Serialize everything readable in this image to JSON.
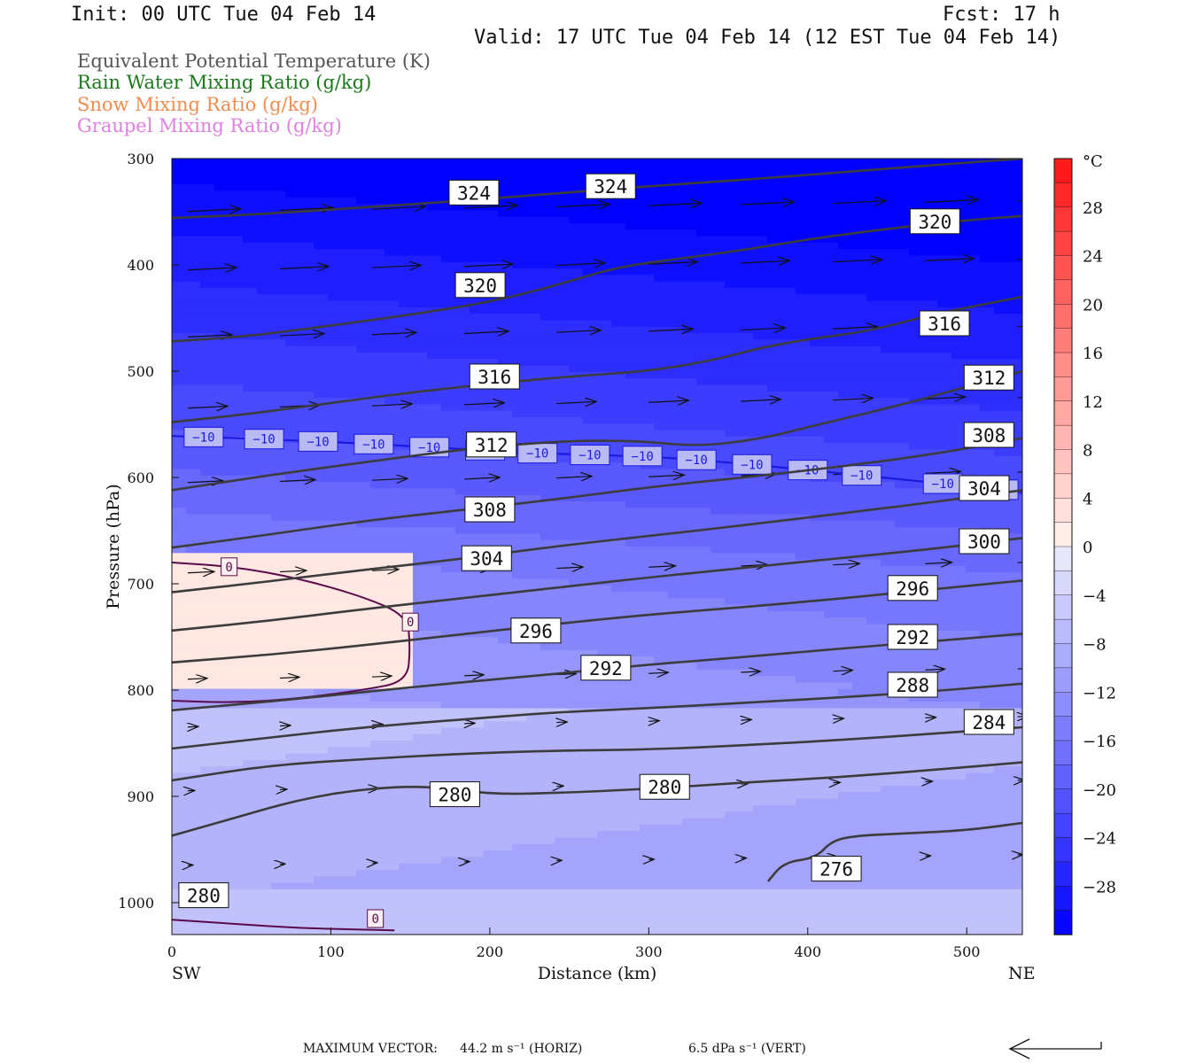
{
  "header": {
    "init": "Init: 00 UTC Tue 04 Feb 14",
    "fcst": "Fcst:   17 h",
    "valid": "Valid: 17 UTC Tue 04 Feb 14 (12 EST Tue 04 Feb 14)"
  },
  "legend": [
    {
      "label": "Equivalent Potential Temperature (K)",
      "color": "#555555"
    },
    {
      "label": "Rain Water Mixing Ratio (g/kg)",
      "color": "#1a7a1a"
    },
    {
      "label": "Snow Mixing Ratio (g/kg)",
      "color": "#f08c50"
    },
    {
      "label": "Graupel Mixing Ratio (g/kg)",
      "color": "#e080e0"
    }
  ],
  "chart_data": {
    "type": "contour",
    "xlabel": "Distance (km)",
    "ylabel": "Pressure (hPa)",
    "xlim": [
      0,
      535
    ],
    "ylim": [
      1030,
      300
    ],
    "x_ticks": [
      0,
      100,
      200,
      300,
      400,
      500
    ],
    "y_ticks": [
      300,
      400,
      500,
      600,
      700,
      800,
      900,
      1000
    ],
    "endpoints": {
      "left": "SW",
      "right": "NE"
    },
    "colorbar": {
      "unit": "°C",
      "labels": [
        28,
        24,
        20,
        16,
        12,
        8,
        4,
        0,
        -4,
        -8,
        -12,
        -16,
        -20,
        -24,
        -28
      ],
      "min": -32,
      "max": 32,
      "step": 2
    },
    "theta_e_contours": [
      {
        "value": 324,
        "x": [
          0,
          60,
          120,
          180,
          240,
          300,
          360,
          420,
          480,
          535
        ],
        "p": [
          356,
          352,
          346,
          340,
          333,
          326,
          320,
          313,
          306,
          300
        ]
      },
      {
        "value": 320,
        "x": [
          0,
          50,
          100,
          150,
          200,
          240,
          280,
          320,
          360,
          400,
          450,
          500,
          535
        ],
        "p": [
          472,
          467,
          457,
          447,
          435,
          420,
          402,
          394,
          386,
          376,
          366,
          358,
          354
        ]
      },
      {
        "value": 316,
        "x": [
          0,
          50,
          100,
          150,
          200,
          250,
          300,
          340,
          370,
          400,
          440,
          480,
          535
        ],
        "p": [
          548,
          540,
          530,
          520,
          512,
          505,
          500,
          490,
          478,
          470,
          462,
          446,
          430
        ]
      },
      {
        "value": 312,
        "x": [
          0,
          60,
          120,
          180,
          240,
          290,
          330,
          370,
          410,
          450,
          490,
          535
        ],
        "p": [
          612,
          598,
          586,
          574,
          566,
          565,
          571,
          564,
          549,
          535,
          519,
          500
        ]
      },
      {
        "value": 308,
        "x": [
          0,
          60,
          120,
          180,
          240,
          300,
          360,
          420,
          480,
          535
        ],
        "p": [
          666,
          654,
          641,
          631,
          621,
          609,
          600,
          590,
          578,
          563
        ]
      },
      {
        "value": 304,
        "x": [
          0,
          60,
          120,
          180,
          240,
          300,
          360,
          420,
          480,
          535
        ],
        "p": [
          708,
          698,
          687,
          677,
          665,
          655,
          645,
          634,
          623,
          612
        ]
      },
      {
        "value": 300,
        "x": [
          0,
          60,
          120,
          180,
          240,
          300,
          360,
          420,
          480,
          535
        ],
        "p": [
          744,
          735,
          724,
          714,
          704,
          694,
          685,
          676,
          667,
          657
        ]
      },
      {
        "value": 296,
        "x": [
          0,
          60,
          120,
          180,
          240,
          300,
          360,
          420,
          480,
          535
        ],
        "p": [
          774,
          767,
          758,
          748,
          738,
          729,
          722,
          714,
          705,
          697
        ]
      },
      {
        "value": 292,
        "x": [
          0,
          60,
          120,
          180,
          240,
          300,
          360,
          420,
          480,
          535
        ],
        "p": [
          819,
          811,
          802,
          793,
          785,
          776,
          769,
          761,
          754,
          747
        ]
      },
      {
        "value": 288,
        "x": [
          0,
          60,
          120,
          180,
          240,
          300,
          360,
          420,
          480,
          535
        ],
        "p": [
          855,
          845,
          835,
          828,
          821,
          817,
          812,
          807,
          801,
          794
        ]
      },
      {
        "value": 284,
        "x": [
          0,
          60,
          120,
          180,
          240,
          300,
          360,
          420,
          480,
          535
        ],
        "p": [
          885,
          871,
          865,
          860,
          857,
          856,
          852,
          847,
          841,
          835
        ]
      },
      {
        "value": 280,
        "x": [
          0,
          40,
          80,
          120,
          160,
          200,
          240,
          300,
          360,
          420,
          480,
          535
        ],
        "p": [
          937,
          920,
          903,
          893,
          890,
          898,
          897,
          893,
          887,
          882,
          875,
          868
        ]
      },
      {
        "value": 276,
        "x": [
          375,
          385,
          405,
          415,
          430,
          460,
          500,
          535
        ],
        "p": [
          980,
          962,
          958,
          942,
          937,
          935,
          932,
          925
        ]
      }
    ],
    "zero_isotherm_label": "0",
    "minus10_isotherm_label": "−10",
    "labels_theta_e": [
      {
        "text": "324",
        "x": 190,
        "p": 332
      },
      {
        "text": "324",
        "x": 276,
        "p": 326
      },
      {
        "text": "320",
        "x": 480,
        "p": 359
      },
      {
        "text": "320",
        "x": 194,
        "p": 419
      },
      {
        "text": "316",
        "x": 486,
        "p": 455
      },
      {
        "text": "316",
        "x": 203,
        "p": 505
      },
      {
        "text": "312",
        "x": 514,
        "p": 506
      },
      {
        "text": "312",
        "x": 201,
        "p": 569
      },
      {
        "text": "308",
        "x": 514,
        "p": 560
      },
      {
        "text": "308",
        "x": 200,
        "p": 630
      },
      {
        "text": "304",
        "x": 511,
        "p": 610
      },
      {
        "text": "304",
        "x": 198,
        "p": 676
      },
      {
        "text": "300",
        "x": 511,
        "p": 660
      },
      {
        "text": "296",
        "x": 466,
        "p": 704
      },
      {
        "text": "296",
        "x": 229,
        "p": 744
      },
      {
        "text": "292",
        "x": 466,
        "p": 750
      },
      {
        "text": "292",
        "x": 273,
        "p": 779
      },
      {
        "text": "288",
        "x": 466,
        "p": 795
      },
      {
        "text": "284",
        "x": 514,
        "p": 830
      },
      {
        "text": "280",
        "x": 178,
        "p": 898
      },
      {
        "text": "280",
        "x": 310,
        "p": 891
      },
      {
        "text": "276",
        "x": 418,
        "p": 968
      },
      {
        "text": "280",
        "x": 20,
        "p": 993
      }
    ]
  },
  "footer": {
    "max_vector": "MAXIMUM VECTOR:",
    "horiz": "44.2 m s⁻¹ (HORIZ)",
    "vert": "6.5 dPa s⁻¹ (VERT)"
  }
}
